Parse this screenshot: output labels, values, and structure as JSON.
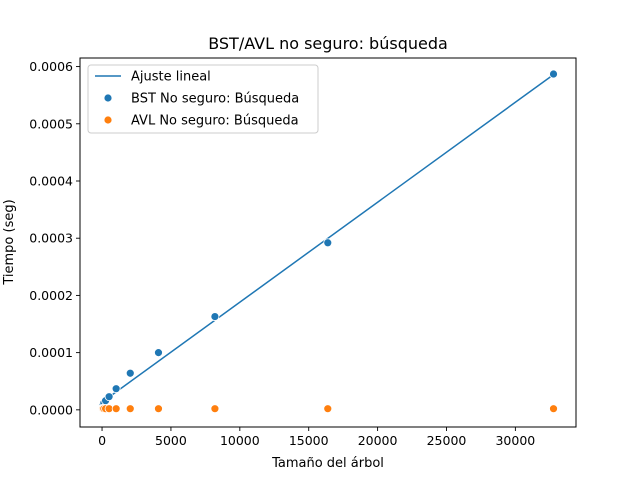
{
  "chart_data": {
    "type": "scatter",
    "title": "BST/AVL no seguro: búsqueda",
    "xlabel": "Tamaño del árbol",
    "ylabel": "Tiempo (seg)",
    "xlim": [
      -1600,
      34400
    ],
    "ylim": [
      -3e-05,
      0.000615
    ],
    "xticks": [
      0,
      5000,
      10000,
      15000,
      20000,
      25000,
      30000
    ],
    "xtick_labels": [
      "0",
      "5000",
      "10000",
      "15000",
      "20000",
      "25000",
      "30000"
    ],
    "yticks": [
      0,
      0.0001,
      0.0002,
      0.0003,
      0.0004,
      0.0005,
      0.0006
    ],
    "ytick_labels": [
      "0.0000",
      "0.0001",
      "0.0002",
      "0.0003",
      "0.0004",
      "0.0005",
      "0.0006"
    ],
    "grid": false,
    "legend_position": "top-left",
    "legend": [
      {
        "label": "Ajuste lineal",
        "kind": "line",
        "color": "#1f77b4"
      },
      {
        "label": "BST No seguro: Búsqueda",
        "kind": "marker",
        "color": "#1f77b4"
      },
      {
        "label": "AVL No seguro: Búsqueda",
        "kind": "marker",
        "color": "#ff7f0e"
      }
    ],
    "series": [
      {
        "name": "Ajuste lineal",
        "kind": "line",
        "color": "#1f77b4",
        "x": [
          2,
          32768
        ],
        "y": [
          1.35e-05,
          0.000586
        ]
      },
      {
        "name": "BST No seguro: Búsqueda",
        "kind": "scatter",
        "color": "#1f77b4",
        "x": [
          2,
          4,
          8,
          16,
          32,
          64,
          128,
          256,
          512,
          1024,
          2048,
          4096,
          8192,
          16384,
          32768
        ],
        "y": [
          3e-06,
          4e-06,
          5e-06,
          6e-06,
          7e-06,
          9e-06,
          1.2e-05,
          1.6e-05,
          2.3e-05,
          3.7e-05,
          6.4e-05,
          0.0001,
          0.000163,
          0.000292,
          0.000587
        ]
      },
      {
        "name": "AVL No seguro: Búsqueda",
        "kind": "scatter",
        "color": "#ff7f0e",
        "x": [
          2,
          4,
          8,
          16,
          32,
          64,
          128,
          256,
          512,
          1024,
          2048,
          4096,
          8192,
          16384,
          32768
        ],
        "y": [
          2e-06,
          2e-06,
          2e-06,
          2e-06,
          2e-06,
          2e-06,
          2e-06,
          2e-06,
          2e-06,
          2e-06,
          2e-06,
          2e-06,
          2e-06,
          2e-06,
          2e-06
        ]
      }
    ]
  }
}
